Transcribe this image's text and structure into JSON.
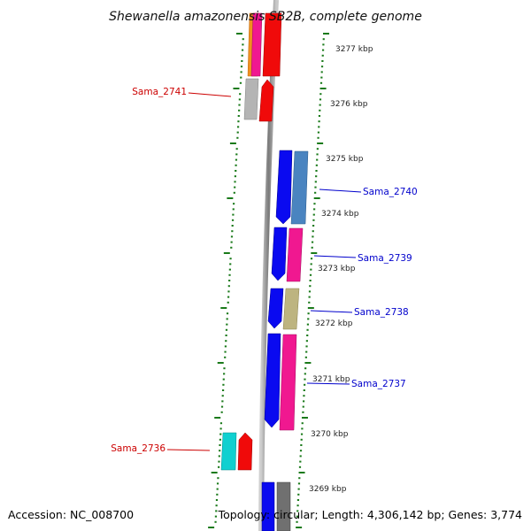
{
  "title": "Shewanella amazonensis SB2B, complete genome",
  "footer": {
    "accession": "Accession: NC_008700",
    "topology": "Topology: circular; Length: 4,306,142 bp; Genes: 3,774"
  },
  "scale_labels": [
    "3277 kbp",
    "3276 kbp",
    "3275 kbp",
    "3274 kbp",
    "3273 kbp",
    "3272 kbp",
    "3271 kbp",
    "3270 kbp",
    "3269 kbp"
  ],
  "gene_labels": [
    {
      "name": "Sama_2741",
      "strand": "reverse"
    },
    {
      "name": "Sama_2740",
      "strand": "forward"
    },
    {
      "name": "Sama_2739",
      "strand": "forward"
    },
    {
      "name": "Sama_2738",
      "strand": "forward"
    },
    {
      "name": "Sama_2737",
      "strand": "forward"
    },
    {
      "name": "Sama_2736",
      "strand": "reverse"
    }
  ],
  "colors": {
    "forward_label": "#0000cc",
    "reverse_label": "#cc0000",
    "backbone": "#8a8a8a",
    "ruler_ticks": "#1a7a1a",
    "blue": "#0a0af0",
    "red": "#f00a0a",
    "magenta": "#f01890",
    "steel_blue": "#4a84c0",
    "khaki": "#bdb480",
    "cyan": "#10d0d0",
    "gray": "#b4b4b4",
    "dark_gray": "#707070",
    "orange": "#f09020"
  }
}
